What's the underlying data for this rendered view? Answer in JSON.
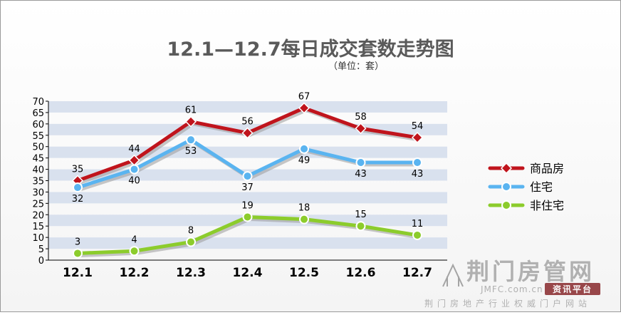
{
  "chart_data": {
    "type": "line",
    "title": "12.1—12.7每日成交套数走势图",
    "subtitle": "（单位：套）",
    "categories": [
      "12.1",
      "12.2",
      "12.3",
      "12.4",
      "12.5",
      "12.6",
      "12.7"
    ],
    "ylim": [
      0,
      70
    ],
    "yticks": [
      0,
      5,
      10,
      15,
      20,
      25,
      30,
      35,
      40,
      45,
      50,
      55,
      60,
      65,
      70
    ],
    "grid": "alternating horizontal bands",
    "legend_position": "right",
    "series": [
      {
        "name": "商品房",
        "values": [
          35,
          44,
          61,
          56,
          67,
          58,
          54
        ],
        "color": "#c0141c",
        "marker": "diamond"
      },
      {
        "name": "住宅",
        "values": [
          32,
          40,
          53,
          37,
          49,
          43,
          43
        ],
        "color": "#5ab4f0",
        "marker": "circle"
      },
      {
        "name": "非住宅",
        "values": [
          3,
          4,
          8,
          19,
          18,
          15,
          11
        ],
        "color": "#8ccc2c",
        "marker": "circle"
      }
    ]
  },
  "watermark": {
    "name": "荆门房管网",
    "domain": "JMFC.com.cn",
    "badge": "资讯平台",
    "slogan": "荆门房地产行业权威门户网站"
  }
}
